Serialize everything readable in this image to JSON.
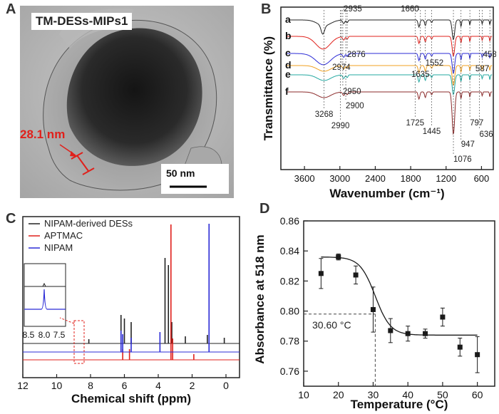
{
  "panelA": {
    "letter": "A",
    "sample_label": "TM-DESs-MIPs1",
    "measure_label": "28.1 nm",
    "scale_label": "50 nm"
  },
  "panelB": {
    "letter": "B",
    "ylabel": "Transmittance (%)",
    "xlabel": "Wavenumber (cm⁻¹)",
    "xticks": [
      "3600",
      "3000",
      "2400",
      "1800",
      "1200",
      "600"
    ],
    "curve_labels": [
      "a",
      "b",
      "c",
      "d",
      "e",
      "f"
    ],
    "peak_labels": [
      "2935",
      "1660",
      "2876",
      "2974",
      "1552",
      "1635",
      "458",
      "587",
      "2950",
      "2900",
      "3268",
      "2990",
      "1725",
      "1445",
      "797",
      "636",
      "947",
      "1076"
    ]
  },
  "panelC": {
    "letter": "C",
    "xlabel": "Chemical shift (ppm)",
    "xticks": [
      "12",
      "10",
      "8",
      "6",
      "4",
      "2",
      "0"
    ],
    "legend": [
      "NIPAM-derived DESs",
      "APTMAC",
      "NIPAM"
    ],
    "inset_ticks": [
      "8.5",
      "8.0",
      "7.5"
    ]
  },
  "panelD": {
    "letter": "D",
    "ylabel": "Absorbance at 518 nm",
    "xlabel": "Temperature (°C)",
    "annotation": "30.60 °C",
    "xticks": [
      "10",
      "20",
      "30",
      "40",
      "50",
      "60"
    ],
    "yticks": [
      "0.76",
      "0.78",
      "0.80",
      "0.82",
      "0.84",
      "0.86"
    ]
  },
  "chart_data": {
    "type": "scatter",
    "x": [
      15,
      20,
      25,
      30,
      35,
      40,
      45,
      50,
      55,
      60
    ],
    "y": [
      0.825,
      0.836,
      0.824,
      0.801,
      0.787,
      0.785,
      0.785,
      0.796,
      0.776,
      0.771
    ],
    "yerr": [
      0.01,
      0.002,
      0.006,
      0.015,
      0.008,
      0.005,
      0.003,
      0.006,
      0.006,
      0.012
    ],
    "fit": {
      "upper": 0.836,
      "lower": 0.784,
      "x0": 30.6,
      "dx": 2.2
    },
    "xlabel": "Temperature (°C)",
    "ylabel": "Absorbance at 518 nm",
    "xlim": [
      10,
      65
    ],
    "ylim": [
      0.75,
      0.86
    ],
    "annotation_x": 30.6,
    "annotation_y": 0.798,
    "colors": {
      "points": "#1a1a1a",
      "fit": "#1a1a1a",
      "guide": "#444444"
    }
  }
}
